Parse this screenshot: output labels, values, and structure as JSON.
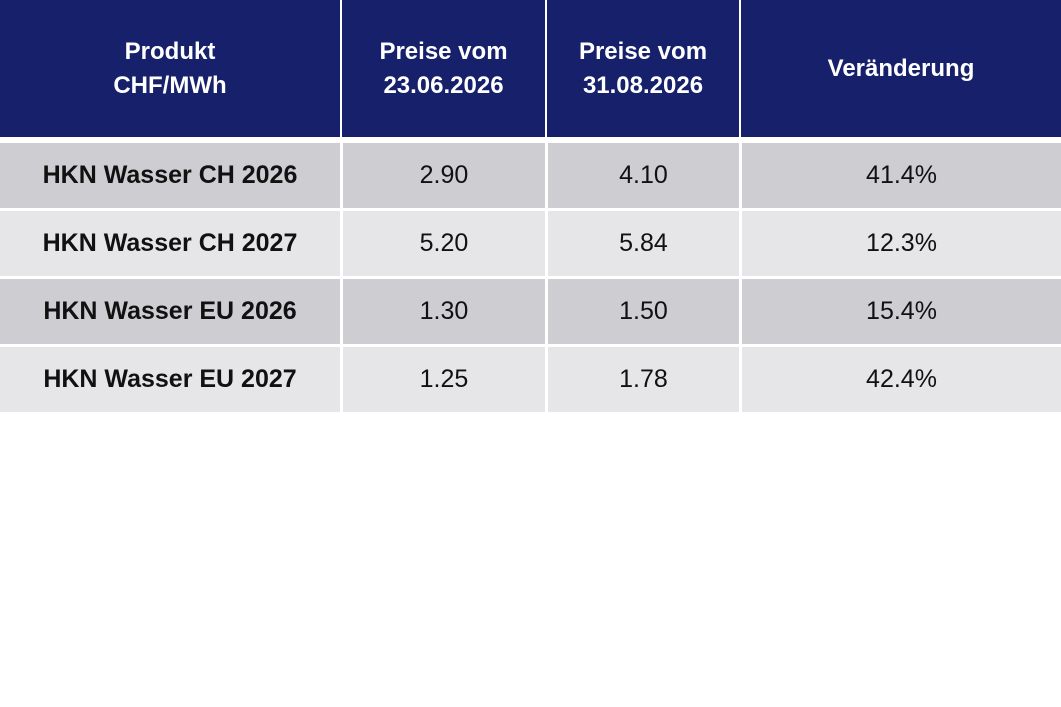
{
  "header": {
    "product_line1": "Produkt",
    "product_line2": "CHF/MWh",
    "price1_line1": "Preise vom",
    "price1_line2": "23.06.2026",
    "price2_line1": "Preise vom",
    "price2_line2": "31.08.2026",
    "change": "Veränderung"
  },
  "rows": [
    {
      "product": "HKN Wasser CH 2026",
      "price1": "2.90",
      "price2": "4.10",
      "change": "41.4%"
    },
    {
      "product": "HKN Wasser CH 2027",
      "price1": "5.20",
      "price2": "5.84",
      "change": "12.3%"
    },
    {
      "product": "HKN Wasser EU 2026",
      "price1": "1.30",
      "price2": "1.50",
      "change": "15.4%"
    },
    {
      "product": "HKN Wasser EU 2027",
      "price1": "1.25",
      "price2": "1.78",
      "change": "42.4%"
    }
  ],
  "colors": {
    "header_bg": "#17206a",
    "row_dark": "#cdcdd2",
    "row_light": "#e6e6e9"
  }
}
